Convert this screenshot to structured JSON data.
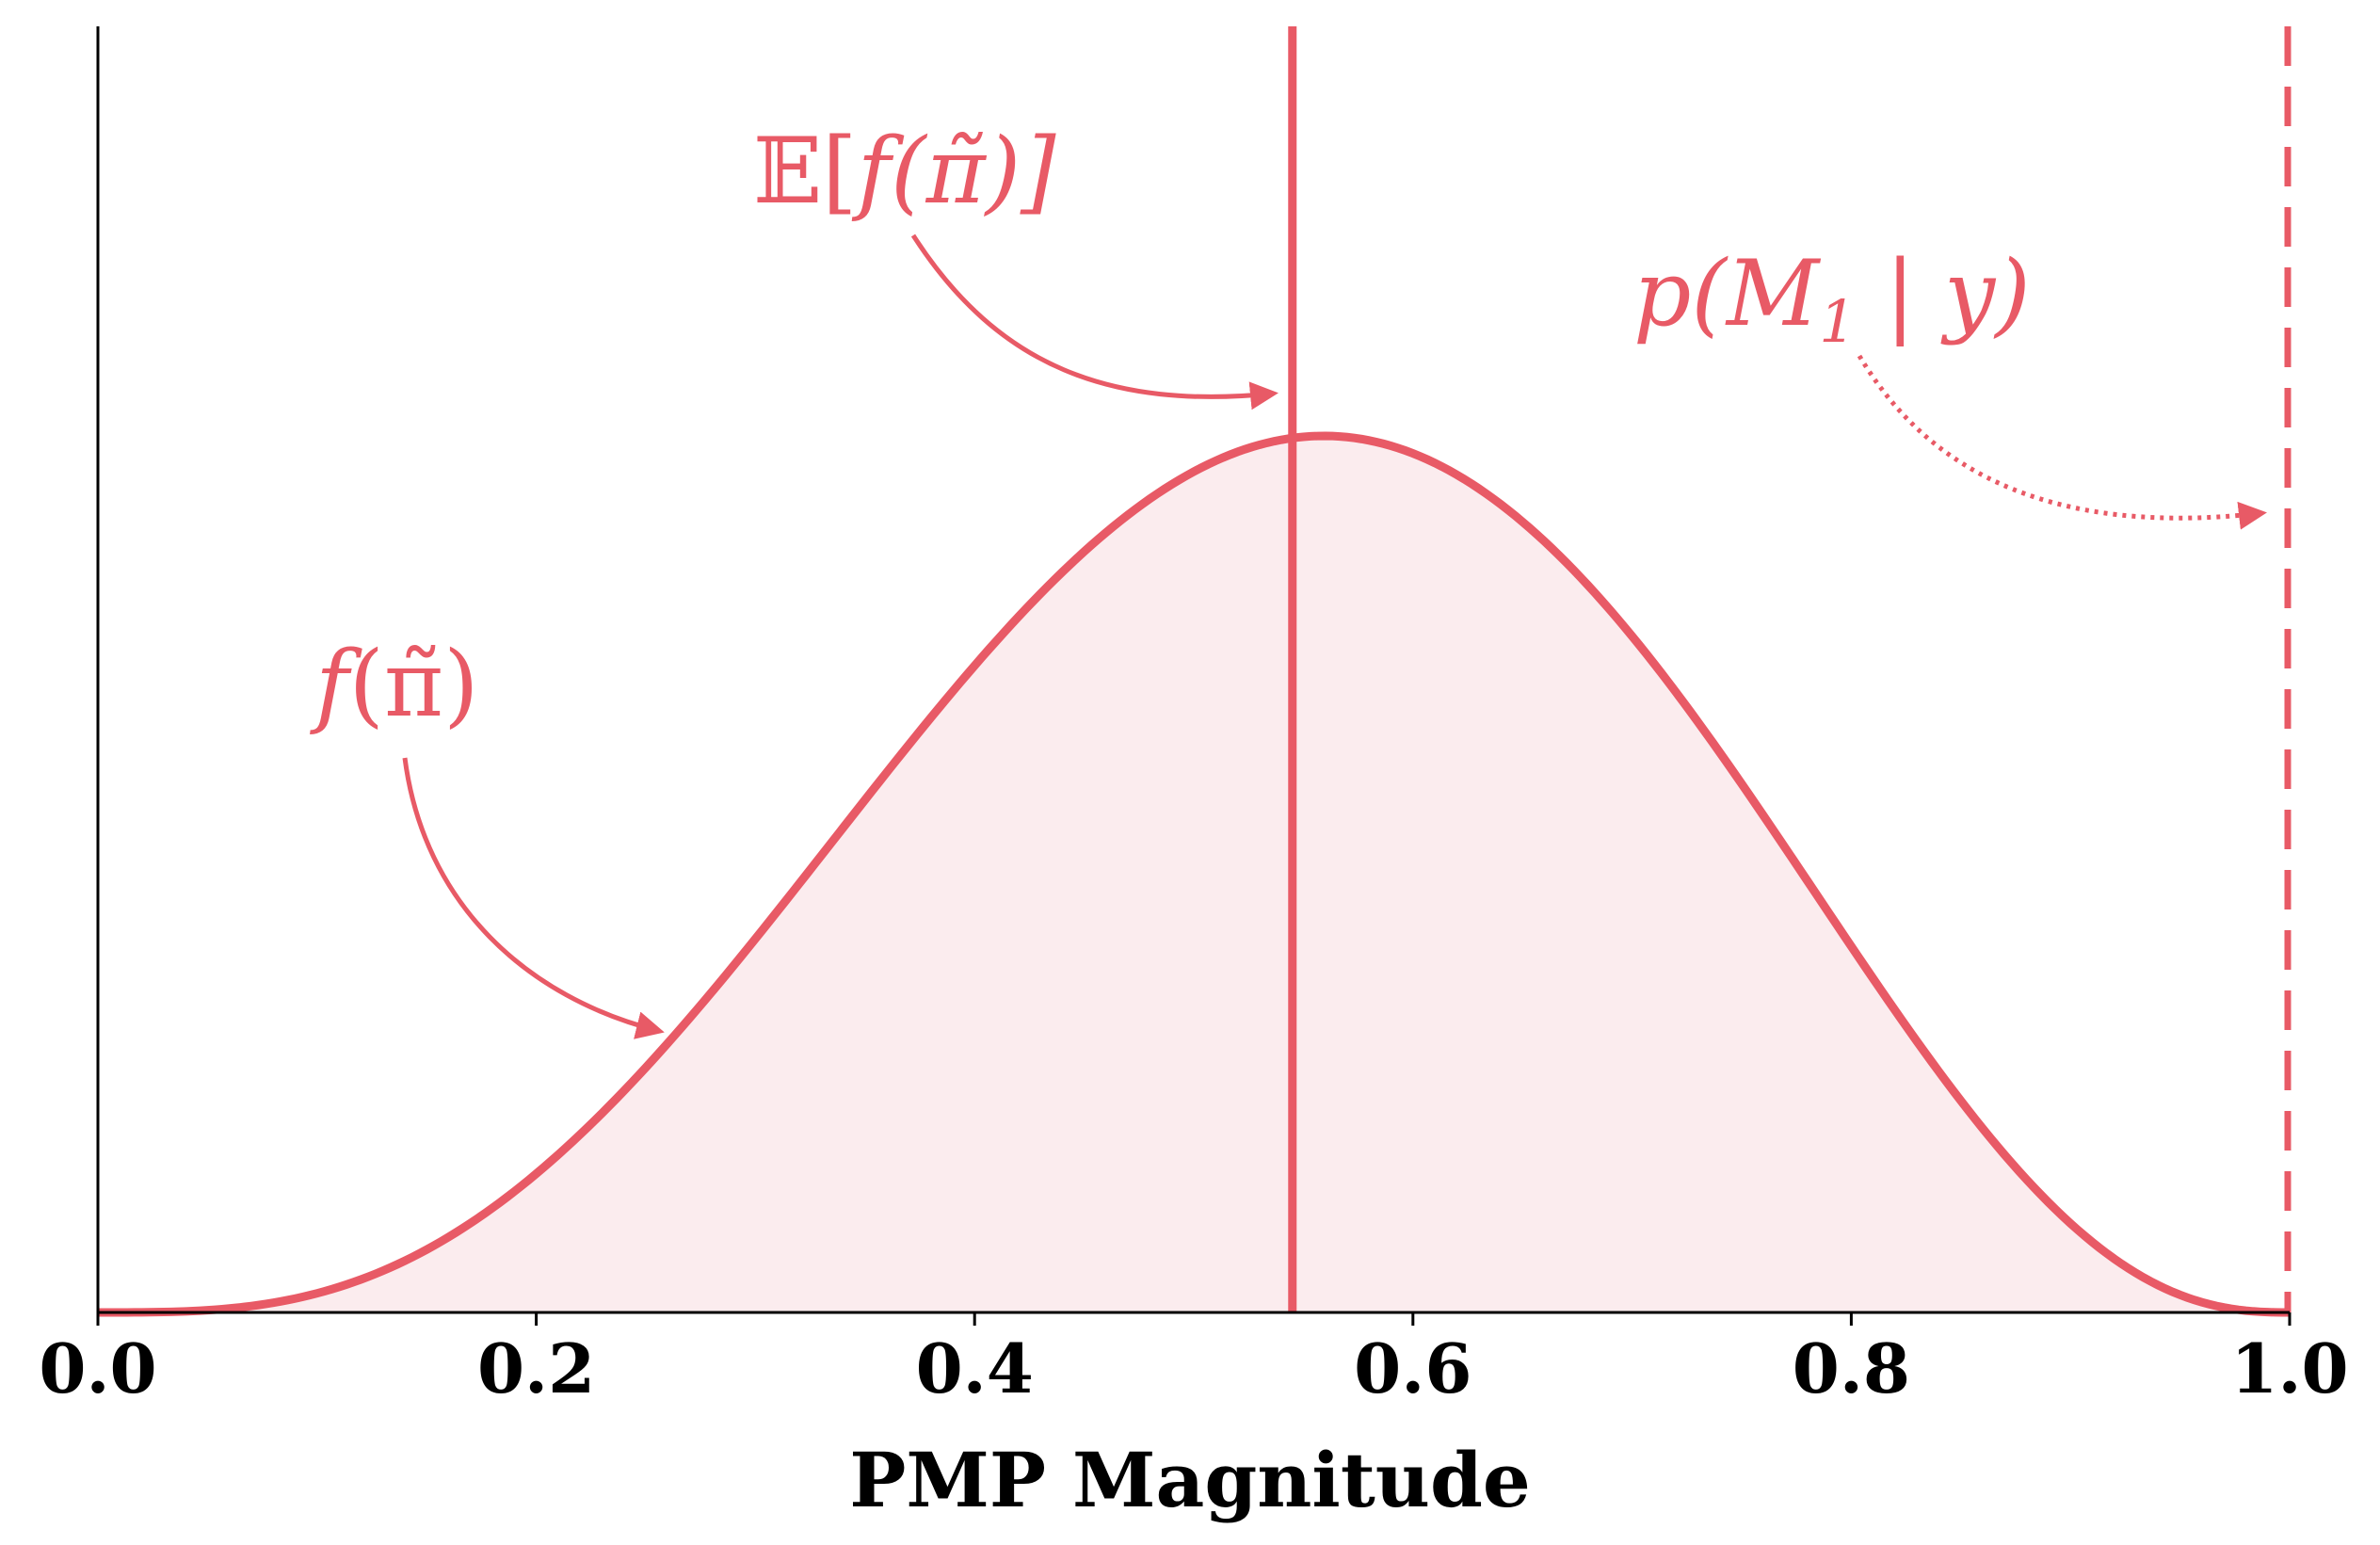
{
  "colors": {
    "accent": "#e85a66",
    "fill": "#fbecee",
    "axis": "#000000"
  },
  "chart_data": {
    "type": "area",
    "title": "",
    "xlabel": "PMP Magnitude",
    "ylabel": "",
    "xlim": [
      0.0,
      1.0
    ],
    "xticks": [
      "0.0",
      "0.2",
      "0.4",
      "0.6",
      "0.8",
      "1.0"
    ],
    "y_ticks_shown": false,
    "grid": false,
    "series": [
      {
        "name": "f(π̃)",
        "distribution": "beta",
        "alpha": 4.3,
        "beta": 3.6,
        "x_range": [
          0.0,
          1.0
        ]
      }
    ],
    "vlines": [
      {
        "x": 0.545,
        "label": "𝔼[f(π̃)]",
        "style": "solid"
      },
      {
        "x": 1.0,
        "label": "p(M₁ | y)",
        "style": "dashed"
      }
    ],
    "annotations": {
      "curve_label": {
        "prefix": "f",
        "body": "(π̃)"
      },
      "mean_label": {
        "prefix": "𝔼[",
        "body": "f(π̃)]"
      },
      "pmp_label": {
        "prefix": "p(M",
        "sub": "1",
        "body": " | y)"
      }
    }
  }
}
